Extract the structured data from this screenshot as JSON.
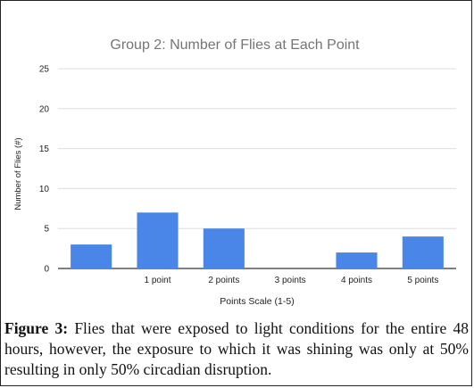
{
  "chart_data": {
    "type": "bar",
    "title": "Group 2: Number of Flies at Each Point",
    "xlabel": "Points Scale (1-5)",
    "ylabel": "Number of Flies (#)",
    "categories": [
      "",
      "1 point",
      "2 points",
      "3 points",
      "4 points",
      "5 points"
    ],
    "values": [
      3,
      7,
      5,
      0,
      2,
      4
    ],
    "ylim": [
      0,
      25
    ],
    "yticks": [
      0,
      5,
      10,
      15,
      20,
      25
    ],
    "grid": true,
    "legend": "none",
    "colors": {
      "bar": "#4a86e8",
      "grid": "#dedede",
      "title": "#757575",
      "text": "#222222"
    }
  },
  "caption": {
    "label": "Figure 3:",
    "text": "Flies that were exposed to light conditions for the entire 48 hours, however, the exposure to which it was shining was only at 50% resulting in only 50% circadian disruption."
  }
}
